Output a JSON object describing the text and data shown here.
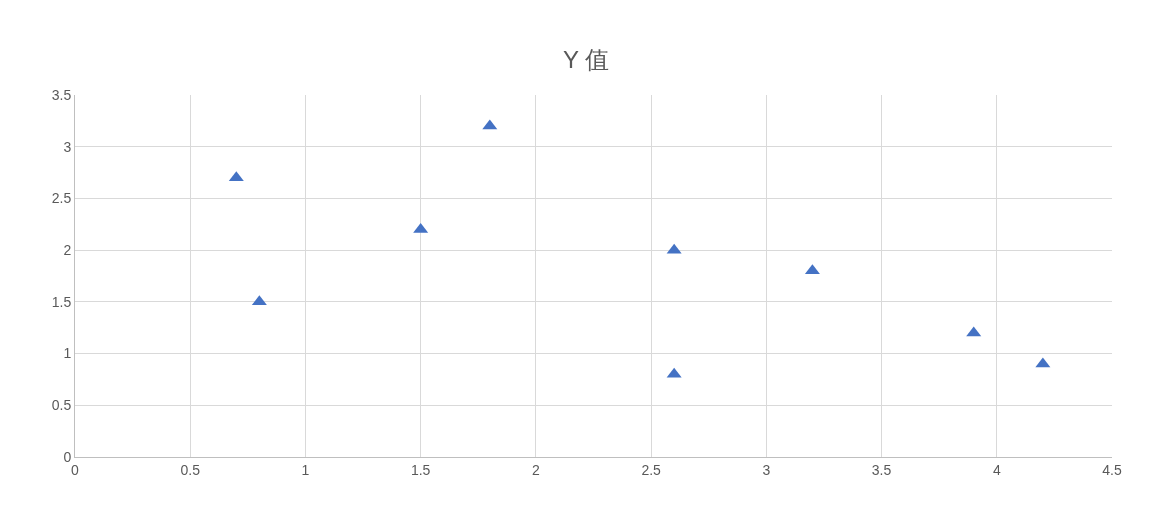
{
  "chart_data": {
    "type": "scatter",
    "title": "Y 值",
    "x": [
      0.7,
      0.8,
      1.5,
      1.8,
      2.6,
      2.6,
      3.2,
      3.9,
      4.2
    ],
    "series": [
      {
        "color": "#4472c4",
        "values": [
          2.7,
          1.5,
          2.2,
          3.2,
          2.0,
          0.8,
          1.8,
          1.2,
          0.9
        ]
      }
    ],
    "xlim": [
      0,
      4.5
    ],
    "xticks": [
      0,
      0.5,
      1,
      1.5,
      2,
      2.5,
      3,
      3.5,
      4,
      4.5
    ],
    "ylim": [
      0,
      3.5
    ],
    "yticks": [
      0,
      0.5,
      1,
      1.5,
      2,
      2.5,
      3,
      3.5
    ],
    "grid": true,
    "marker": "triangle"
  }
}
